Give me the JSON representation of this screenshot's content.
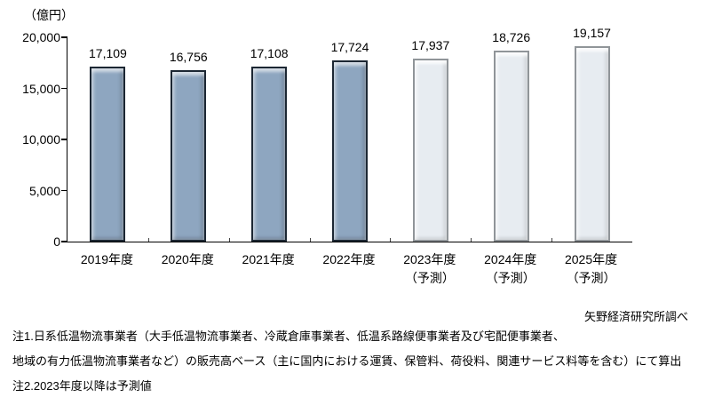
{
  "chart_data": {
    "type": "bar",
    "title": "",
    "unit_label": "（億円）",
    "categories": [
      "2019年度",
      "2020年度",
      "2021年度",
      "2022年度",
      "2023年度",
      "2024年度",
      "2025年度"
    ],
    "category_sublabels": [
      "",
      "",
      "",
      "",
      "（予測）",
      "（予測）",
      "（予測）"
    ],
    "values": [
      17109,
      16756,
      17108,
      17724,
      17937,
      18726,
      19157
    ],
    "value_labels": [
      "17,109",
      "16,756",
      "17,108",
      "17,724",
      "17,937",
      "18,726",
      "19,157"
    ],
    "forecast_flags": [
      false,
      false,
      false,
      false,
      true,
      true,
      true
    ],
    "ylim": [
      0,
      20000
    ],
    "ytick_values": [
      0,
      5000,
      10000,
      15000,
      20000
    ],
    "ytick_labels": [
      "0",
      "5,000",
      "10,000",
      "15,000",
      "20,000"
    ],
    "grid": false,
    "legend": "none",
    "colors": {
      "actual_body": "#8ea6c0",
      "actual_edge": "#1c2733",
      "forecast_body": "#e7ecf1",
      "forecast_edge": "#909599",
      "axis": "#000000"
    }
  },
  "source": "矢野経済研究所調べ",
  "notes": [
    "注1.日系低温物流事業者（大手低温物流事業者、冷蔵倉庫事業者、低温系路線便事業者及び宅配便事業者、",
    "地域の有力低温物流事業者など）の販売高ベース（主に国内における運賃、保管料、荷役料、関連サービス料等を含む）にて算出",
    "注2.2023年度以降は予測値"
  ]
}
